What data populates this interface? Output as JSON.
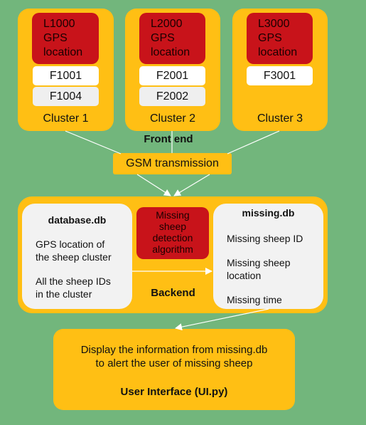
{
  "colors": {
    "background": "#72b67c",
    "box": "#ffbf14",
    "location": "#c8131a",
    "panel": "#f2f2f2",
    "arrow": "#ffffff"
  },
  "clusters": [
    {
      "location": [
        "L1000",
        "GPS",
        "location"
      ],
      "sheep": [
        "F1001",
        "F1004"
      ],
      "label": "Cluster 1"
    },
    {
      "location": [
        "L2000",
        "GPS",
        "location"
      ],
      "sheep": [
        "F2001",
        "F2002"
      ],
      "label": "Cluster 2"
    },
    {
      "location": [
        "L3000",
        "GPS",
        "location"
      ],
      "sheep": [
        "F3001"
      ],
      "label": "Cluster 3"
    }
  ],
  "front_end_label": "Front end",
  "gsm_label": "GSM transmission",
  "backend": {
    "label": "Backend",
    "database": {
      "title": "database.db",
      "line1": [
        "GPS location of",
        "the sheep cluster"
      ],
      "line2": [
        "All the sheep IDs",
        "in the cluster"
      ]
    },
    "algorithm": [
      "Missing",
      "sheep",
      "detection",
      "algorithm"
    ],
    "missing": {
      "title": "missing.db",
      "item1": "Missing sheep ID",
      "item2": [
        "Missing sheep",
        "location"
      ],
      "item3": "Missing time"
    }
  },
  "ui": {
    "line1": "Display the information from missing.db",
    "line2": "to alert the user of missing sheep",
    "title": "User Interface (UI.py)"
  }
}
